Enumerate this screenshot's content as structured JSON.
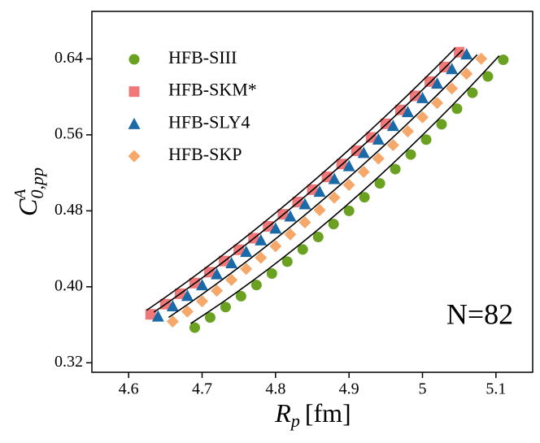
{
  "chart_data": {
    "type": "scatter",
    "xlabel": {
      "main": "R",
      "sub": "p",
      "unit": "[fm]"
    },
    "ylabel": {
      "main": "C",
      "sup": "A",
      "sub": "0,pp"
    },
    "annotation": "N=82",
    "xlim": [
      4.55,
      5.15
    ],
    "ylim": [
      0.31,
      0.69
    ],
    "xticks": [
      4.6,
      4.7,
      4.8,
      4.9,
      5.0,
      5.1
    ],
    "yticks": [
      0.32,
      {
        "value": 0.4,
        "label": "0.40"
      },
      0.48,
      0.56,
      0.64
    ],
    "legend": "upper-left",
    "series": [
      {
        "name": "HFB-SIII",
        "color": "#6aa121",
        "marker": "circle",
        "x": [
          4.69,
          4.711,
          4.732,
          4.753,
          4.774,
          4.795,
          4.816,
          4.837,
          4.858,
          4.879,
          4.9,
          4.921,
          4.942,
          4.963,
          4.984,
          5.005,
          5.026,
          5.047,
          5.068,
          5.089,
          5.11
        ],
        "values": [
          0.357,
          0.3677,
          0.3787,
          0.3901,
          0.4019,
          0.414,
          0.4265,
          0.4393,
          0.4525,
          0.4661,
          0.48,
          0.4943,
          0.5089,
          0.5239,
          0.5393,
          0.555,
          0.5711,
          0.5875,
          0.6043,
          0.6215,
          0.639
        ]
      },
      {
        "name": "HFB-SKM*",
        "color": "#f07878",
        "marker": "square",
        "x": [
          4.63,
          4.65,
          4.67,
          4.69,
          4.71,
          4.73,
          4.75,
          4.77,
          4.79,
          4.81,
          4.83,
          4.85,
          4.87,
          4.89,
          4.91,
          4.93,
          4.95,
          4.97,
          4.99,
          5.01,
          5.03,
          5.05
        ],
        "values": [
          0.371,
          0.3817,
          0.3927,
          0.4039,
          0.4154,
          0.4271,
          0.439,
          0.4512,
          0.4636,
          0.4763,
          0.4892,
          0.5023,
          0.5157,
          0.5293,
          0.5432,
          0.5573,
          0.5716,
          0.5862,
          0.601,
          0.6161,
          0.6314,
          0.647
        ]
      },
      {
        "name": "HFB-SLY4",
        "color": "#1a6aa8",
        "marker": "triangle",
        "x": [
          4.64,
          4.66,
          4.68,
          4.7,
          4.72,
          4.74,
          4.76,
          4.78,
          4.8,
          4.82,
          4.84,
          4.86,
          4.88,
          4.9,
          4.92,
          4.94,
          4.96,
          4.98,
          5.0,
          5.02,
          5.04,
          5.06
        ],
        "values": [
          0.369,
          0.3797,
          0.3907,
          0.4019,
          0.4134,
          0.4251,
          0.437,
          0.4492,
          0.4616,
          0.4743,
          0.4872,
          0.5003,
          0.5137,
          0.5273,
          0.5412,
          0.5553,
          0.5696,
          0.5842,
          0.599,
          0.6141,
          0.6294,
          0.645
        ]
      },
      {
        "name": "HFB-SKP",
        "color": "#f5a86a",
        "marker": "diamond",
        "x": [
          4.66,
          4.68,
          4.7,
          4.72,
          4.74,
          4.76,
          4.78,
          4.8,
          4.82,
          4.84,
          4.86,
          4.88,
          4.9,
          4.92,
          4.94,
          4.96,
          4.98,
          5.0,
          5.02,
          5.04,
          5.06,
          5.08
        ],
        "values": [
          0.3635,
          0.374,
          0.3848,
          0.3959,
          0.4072,
          0.4188,
          0.4307,
          0.4428,
          0.4552,
          0.4678,
          0.4807,
          0.4939,
          0.5073,
          0.521,
          0.535,
          0.5492,
          0.5637,
          0.5785,
          0.5935,
          0.6088,
          0.6243,
          0.6401
        ]
      }
    ]
  }
}
